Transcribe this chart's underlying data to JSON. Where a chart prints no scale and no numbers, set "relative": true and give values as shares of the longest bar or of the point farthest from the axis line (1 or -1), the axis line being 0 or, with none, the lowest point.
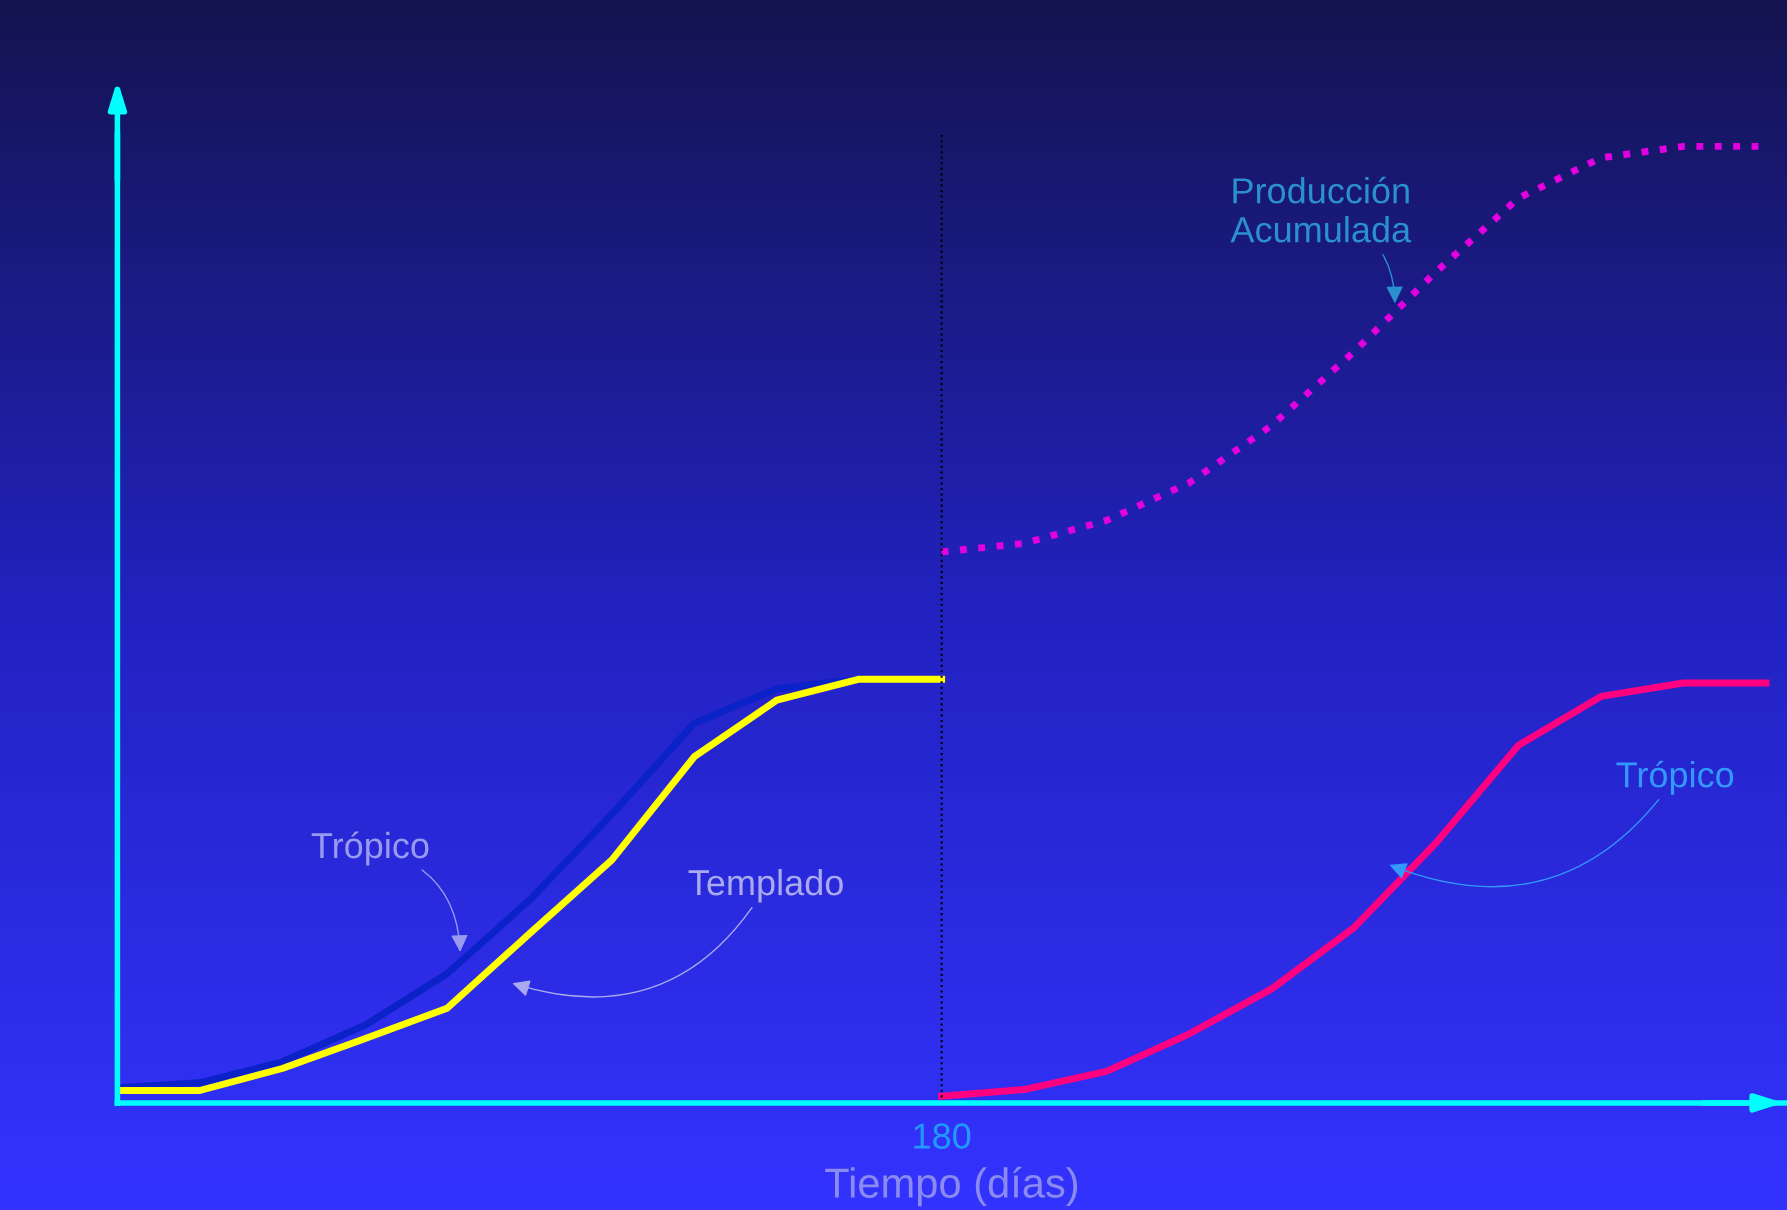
{
  "chart_data": {
    "type": "line",
    "relative": true,
    "xlabel": "Tiempo (días)",
    "categories": [
      null,
      null,
      null,
      null,
      null,
      null,
      null,
      null,
      null,
      null,
      null,
      null,
      null,
      null,
      null,
      null,
      null,
      null,
      null,
      null,
      null
    ],
    "series": [
      {
        "name": "Trópico",
        "color": "#0a22c8",
        "line_style": "solid",
        "values": [
          0.016,
          0.021,
          0.043,
          0.081,
          0.135,
          0.212,
          0.302,
          0.397,
          0.433,
          0.443,
          null,
          null,
          null,
          null,
          null,
          null,
          null,
          null,
          null,
          null,
          null
        ]
      },
      {
        "name": "Templado",
        "color": "#ffff00",
        "line_style": "solid",
        "values": [
          0.013,
          0.013,
          0.036,
          0.067,
          0.099,
          0.177,
          0.254,
          0.362,
          0.421,
          0.443,
          0.443,
          null,
          null,
          null,
          null,
          null,
          null,
          null,
          null,
          null,
          null
        ]
      },
      {
        "name": "Trópico",
        "color": "#ff0080",
        "line_style": "solid",
        "values": [
          null,
          null,
          null,
          null,
          null,
          null,
          null,
          null,
          null,
          null,
          0.007,
          0.014,
          0.033,
          0.072,
          0.119,
          0.183,
          0.272,
          0.374,
          0.425,
          0.439,
          0.439
        ]
      },
      {
        "name": "Producción\nAcumulada",
        "color": "#e000e0",
        "line_style": "dotted",
        "values": [
          null,
          null,
          null,
          null,
          null,
          null,
          null,
          null,
          null,
          null,
          0.576,
          0.585,
          0.609,
          0.648,
          0.708,
          0.785,
          0.869,
          0.946,
          0.988,
          1,
          1
        ]
      }
    ],
    "ref_lines": [
      {
        "axis": "x",
        "label": "180",
        "color": "#000000",
        "line_style": "dotted"
      }
    ],
    "legend": false,
    "marker": "none",
    "grid": false
  }
}
